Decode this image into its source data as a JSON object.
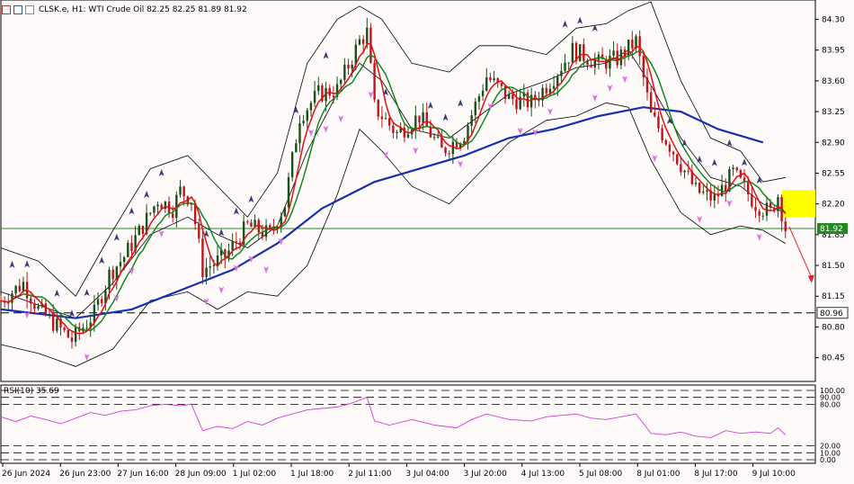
{
  "header": {
    "symbol": "CLSK.e",
    "timeframe": "H1",
    "instrument": "WTI Crude Oil",
    "ohlc": "82.25 82.25 81.89 81.92",
    "text": "CLSK.e, H1:  WTI Crude Oil  82.25 82.25 81.89 81.92",
    "icons": [
      "toolbar-icon-1",
      "toolbar-icon-2",
      "toolbar-icon-3"
    ]
  },
  "colors": {
    "background": "#fffafa",
    "bull": "#1a4f1a",
    "bear": "#c0141a",
    "ma_fast_red": "#dd1111",
    "ma_fast_green": "#11881f",
    "ma_slow": "#1a2fb0",
    "bands": "#000000",
    "rsi": "#d040d0",
    "highlight": "#ffff00",
    "current_price_line": "#228822",
    "arrow": "#e02020"
  },
  "chart_data": {
    "type": "line",
    "title": "CLSK.e, H1: WTI Crude Oil",
    "price_axis": {
      "ticks": [
        "84.30",
        "83.95",
        "83.60",
        "83.25",
        "82.90",
        "82.55",
        "82.20",
        "81.85",
        "81.50",
        "81.15",
        "80.80",
        "80.45"
      ],
      "range": [
        80.18,
        84.52
      ]
    },
    "time_axis": {
      "labels": [
        "26 Jun 2024",
        "26 Jun 23:00",
        "27 Jun 16:00",
        "28 Jun 09:00",
        "1 Jul 02:00",
        "1 Jul 18:00",
        "2 Jul 11:00",
        "3 Jul 04:00",
        "3 Jul 20:00",
        "4 Jul 13:00",
        "5 Jul 08:00",
        "8 Jul 01:00",
        "8 Jul 17:00",
        "9 Jul 10:00"
      ]
    },
    "current_price": "81.92",
    "support_level": "80.96",
    "highlight_zone": {
      "low": 82.05,
      "high": 82.36
    },
    "close_path": [
      [
        0,
        81.1
      ],
      [
        6,
        81.3
      ],
      [
        10,
        81.0
      ],
      [
        14,
        80.85
      ],
      [
        19,
        80.65
      ],
      [
        25,
        80.95
      ],
      [
        29,
        81.4
      ],
      [
        33,
        81.6
      ],
      [
        38,
        81.95
      ],
      [
        42,
        82.25
      ],
      [
        46,
        82.15
      ],
      [
        48,
        82.35
      ],
      [
        51,
        82.25
      ],
      [
        54,
        81.45
      ],
      [
        60,
        81.6
      ],
      [
        66,
        81.95
      ],
      [
        72,
        81.85
      ],
      [
        76,
        82.2
      ],
      [
        80,
        83.2
      ],
      [
        85,
        83.45
      ],
      [
        90,
        83.5
      ],
      [
        96,
        84.05
      ],
      [
        98,
        84.15
      ],
      [
        100,
        83.3
      ],
      [
        106,
        83.0
      ],
      [
        112,
        83.2
      ],
      [
        118,
        82.8
      ],
      [
        124,
        83.0
      ],
      [
        130,
        83.65
      ],
      [
        136,
        83.4
      ],
      [
        142,
        83.35
      ],
      [
        148,
        83.65
      ],
      [
        153,
        83.95
      ],
      [
        160,
        83.8
      ],
      [
        165,
        83.85
      ],
      [
        170,
        84.05
      ],
      [
        174,
        83.2
      ],
      [
        180,
        82.8
      ],
      [
        186,
        82.35
      ],
      [
        191,
        82.25
      ],
      [
        196,
        82.55
      ],
      [
        202,
        82.2
      ],
      [
        206,
        82.1
      ],
      [
        208,
        82.3
      ],
      [
        210,
        81.92
      ]
    ],
    "series": [
      {
        "name": "Bollinger upper",
        "values": [
          [
            0,
            81.7
          ],
          [
            10,
            81.55
          ],
          [
            20,
            81.15
          ],
          [
            30,
            81.9
          ],
          [
            40,
            82.6
          ],
          [
            50,
            82.75
          ],
          [
            58,
            82.4
          ],
          [
            66,
            82.05
          ],
          [
            74,
            82.55
          ],
          [
            82,
            83.8
          ],
          [
            90,
            84.3
          ],
          [
            96,
            84.45
          ],
          [
            102,
            84.3
          ],
          [
            110,
            83.8
          ],
          [
            120,
            83.7
          ],
          [
            128,
            84.0
          ],
          [
            136,
            84.0
          ],
          [
            146,
            83.9
          ],
          [
            154,
            84.2
          ],
          [
            162,
            84.25
          ],
          [
            168,
            84.4
          ],
          [
            174,
            84.5
          ],
          [
            182,
            83.6
          ],
          [
            190,
            82.95
          ],
          [
            198,
            82.8
          ],
          [
            204,
            82.45
          ],
          [
            210,
            82.5
          ]
        ]
      },
      {
        "name": "Bollinger middle",
        "values": [
          [
            0,
            81.2
          ],
          [
            10,
            81.05
          ],
          [
            20,
            80.9
          ],
          [
            30,
            81.3
          ],
          [
            40,
            81.85
          ],
          [
            50,
            82.05
          ],
          [
            58,
            81.85
          ],
          [
            66,
            81.7
          ],
          [
            74,
            81.95
          ],
          [
            82,
            82.8
          ],
          [
            90,
            83.45
          ],
          [
            96,
            83.8
          ],
          [
            102,
            83.6
          ],
          [
            110,
            83.05
          ],
          [
            120,
            82.95
          ],
          [
            128,
            83.2
          ],
          [
            136,
            83.45
          ],
          [
            146,
            83.6
          ],
          [
            154,
            83.75
          ],
          [
            162,
            83.8
          ],
          [
            168,
            83.95
          ],
          [
            174,
            83.55
          ],
          [
            182,
            82.95
          ],
          [
            190,
            82.5
          ],
          [
            198,
            82.4
          ],
          [
            204,
            82.2
          ],
          [
            210,
            82.1
          ]
        ]
      },
      {
        "name": "Bollinger lower",
        "values": [
          [
            0,
            80.6
          ],
          [
            10,
            80.5
          ],
          [
            20,
            80.35
          ],
          [
            30,
            80.55
          ],
          [
            40,
            81.1
          ],
          [
            50,
            81.2
          ],
          [
            58,
            81.0
          ],
          [
            66,
            81.2
          ],
          [
            74,
            81.15
          ],
          [
            82,
            81.5
          ],
          [
            90,
            82.3
          ],
          [
            96,
            83.05
          ],
          [
            102,
            82.8
          ],
          [
            110,
            82.4
          ],
          [
            120,
            82.2
          ],
          [
            128,
            82.55
          ],
          [
            136,
            82.9
          ],
          [
            146,
            83.15
          ],
          [
            154,
            83.2
          ],
          [
            162,
            83.35
          ],
          [
            168,
            83.3
          ],
          [
            174,
            82.7
          ],
          [
            182,
            82.1
          ],
          [
            190,
            81.85
          ],
          [
            198,
            81.95
          ],
          [
            204,
            81.9
          ],
          [
            210,
            81.75
          ]
        ]
      },
      {
        "name": "Moving average",
        "values": [
          [
            0,
            81.0
          ],
          [
            20,
            80.9
          ],
          [
            35,
            81.0
          ],
          [
            50,
            81.25
          ],
          [
            62,
            81.45
          ],
          [
            74,
            81.75
          ],
          [
            86,
            82.15
          ],
          [
            100,
            82.45
          ],
          [
            112,
            82.6
          ],
          [
            124,
            82.75
          ],
          [
            136,
            82.95
          ],
          [
            148,
            83.05
          ],
          [
            160,
            83.2
          ],
          [
            172,
            83.3
          ],
          [
            182,
            83.25
          ],
          [
            192,
            83.05
          ],
          [
            204,
            82.9
          ]
        ]
      }
    ],
    "rsi": {
      "label": "RSI(10) 35.69",
      "ticks": [
        "100.00",
        "90.00",
        "80.00",
        "20.00",
        "10.00",
        "0.00"
      ],
      "levels": [
        100,
        90,
        80,
        20,
        10,
        0
      ],
      "current": 35.69,
      "values": [
        [
          0,
          62
        ],
        [
          4,
          55
        ],
        [
          8,
          63
        ],
        [
          12,
          58
        ],
        [
          16,
          52
        ],
        [
          20,
          60
        ],
        [
          24,
          68
        ],
        [
          28,
          64
        ],
        [
          32,
          70
        ],
        [
          36,
          72
        ],
        [
          40,
          78
        ],
        [
          44,
          80
        ],
        [
          48,
          78
        ],
        [
          51,
          80
        ],
        [
          54,
          42
        ],
        [
          58,
          48
        ],
        [
          62,
          45
        ],
        [
          66,
          55
        ],
        [
          70,
          50
        ],
        [
          74,
          60
        ],
        [
          78,
          66
        ],
        [
          82,
          72
        ],
        [
          86,
          74
        ],
        [
          90,
          76
        ],
        [
          94,
          82
        ],
        [
          98,
          90
        ],
        [
          100,
          56
        ],
        [
          104,
          50
        ],
        [
          110,
          58
        ],
        [
          116,
          50
        ],
        [
          122,
          46
        ],
        [
          126,
          58
        ],
        [
          130,
          66
        ],
        [
          136,
          58
        ],
        [
          142,
          56
        ],
        [
          146,
          62
        ],
        [
          150,
          64
        ],
        [
          154,
          66
        ],
        [
          158,
          60
        ],
        [
          162,
          58
        ],
        [
          166,
          62
        ],
        [
          170,
          66
        ],
        [
          174,
          38
        ],
        [
          178,
          36
        ],
        [
          182,
          40
        ],
        [
          186,
          34
        ],
        [
          190,
          32
        ],
        [
          194,
          42
        ],
        [
          198,
          38
        ],
        [
          202,
          40
        ],
        [
          206,
          38
        ],
        [
          208,
          46
        ],
        [
          210,
          35.69
        ]
      ]
    }
  }
}
